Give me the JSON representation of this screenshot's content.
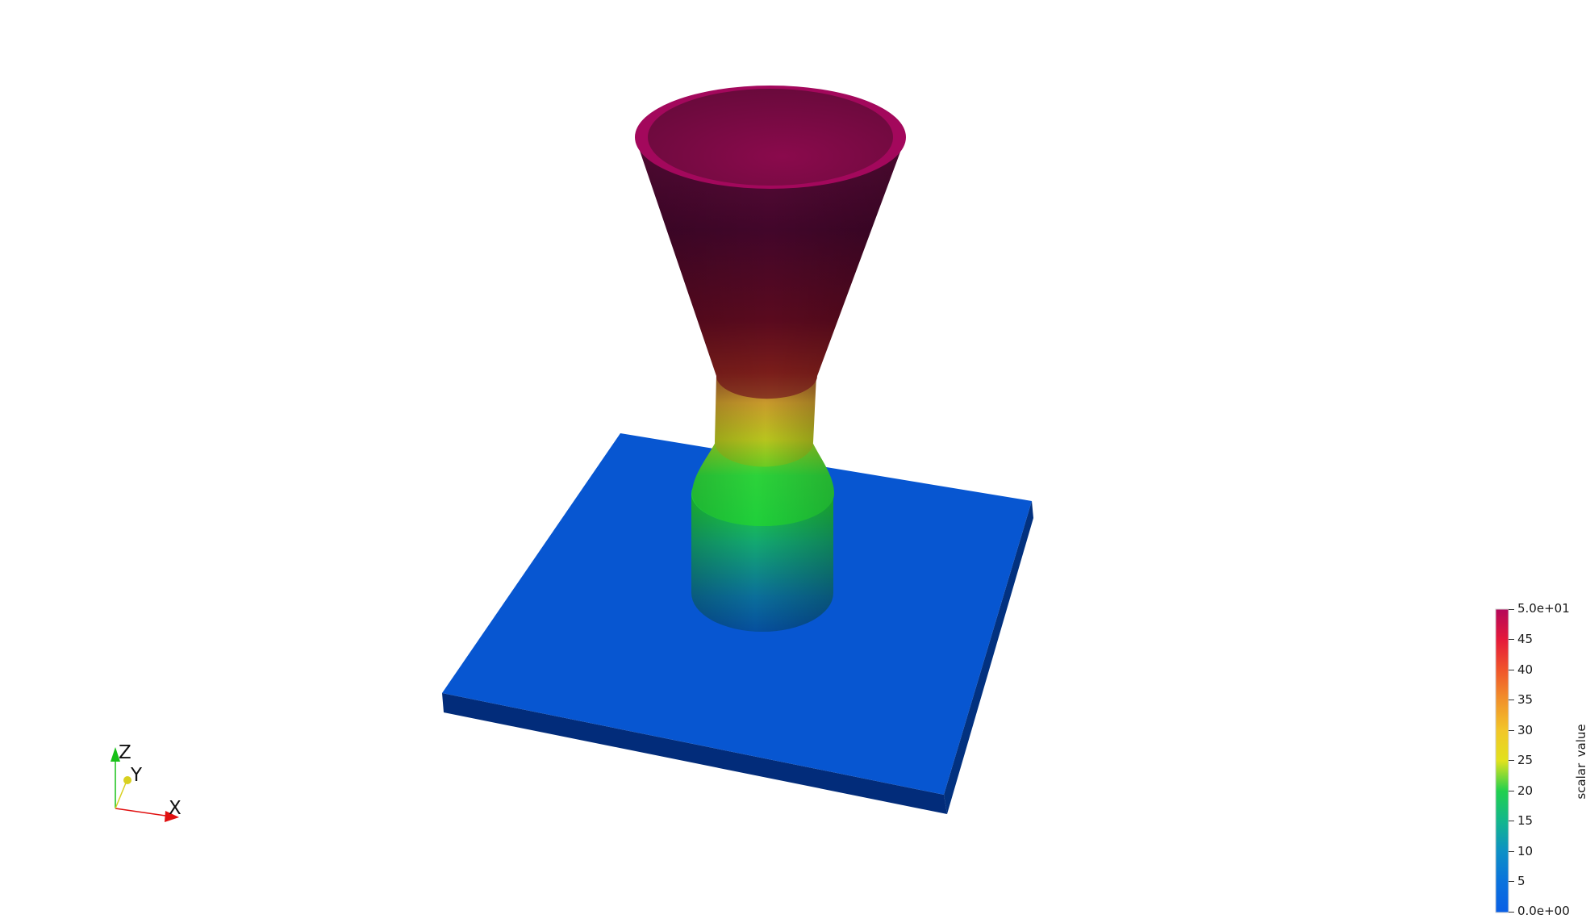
{
  "scene": {
    "objects": [
      {
        "name": "base-plate",
        "color": "#0756d1"
      },
      {
        "name": "lower-cylinder",
        "color_gradient": [
          "#06508f",
          "#13b06b",
          "#21d22c"
        ]
      },
      {
        "name": "neck",
        "color_gradient": [
          "#2fd12a",
          "#d8c31a",
          "#b0702a"
        ]
      },
      {
        "name": "funnel-cone",
        "color_gradient": [
          "#5d0d22",
          "#4a0528",
          "#8a0b4f"
        ]
      },
      {
        "name": "funnel-rim",
        "color": "#a3085c"
      }
    ]
  },
  "orientation_axes": {
    "x_label": "X",
    "y_label": "Y",
    "z_label": "Z",
    "x_color": "#e01010",
    "y_color": "#d8d020",
    "z_color": "#18c018"
  },
  "colorbar": {
    "title": "scalar_value",
    "labels": [
      "5.0e+01",
      "45",
      "40",
      "35",
      "30",
      "25",
      "20",
      "15",
      "10",
      "5",
      "0.0e+00"
    ],
    "range": [
      0,
      50
    ],
    "colors": [
      "#b4065a",
      "#e5193a",
      "#f0542a",
      "#f1922a",
      "#f2c628",
      "#e1e21d",
      "#7de021",
      "#20d04e",
      "#12b68d",
      "#0d90c6",
      "#0a5fe6"
    ]
  }
}
